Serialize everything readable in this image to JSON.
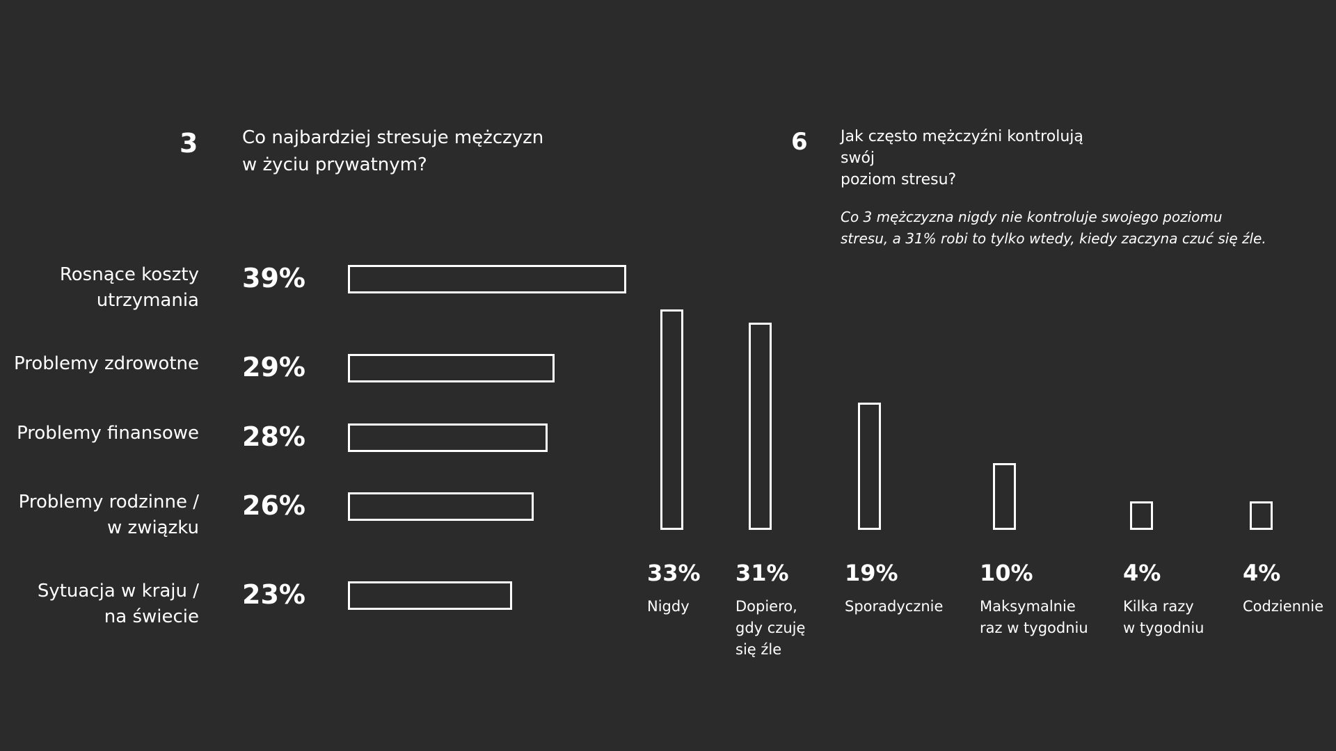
{
  "colors": {
    "background": "#2b2b2b",
    "foreground": "#ffffff"
  },
  "section3": {
    "number": "3",
    "title": "Co najbardziej stresuje mężczyzn\nw życiu prywatnym?"
  },
  "section6": {
    "number": "6",
    "title": "Jak często mężczyźni kontrolują swój\npoziom stresu?",
    "note": "Co 3 mężczyzna nigdy nie kontroluje swojego poziomu\nstresu, a 31% robi to tylko wtedy, kiedy zaczyna czuć się źle."
  },
  "chart_data": [
    {
      "type": "bar",
      "orientation": "horizontal",
      "title": "Co najbardziej stresuje mężczyzn w życiu prywatnym?",
      "categories": [
        "Rosnące koszty\nutrzymania",
        "Problemy zdrowotne",
        "Problemy finansowe",
        "Problemy rodzinne /\nw związku",
        "Sytuacja w kraju /\nna świecie"
      ],
      "values": [
        39,
        29,
        28,
        26,
        23
      ],
      "value_labels": [
        "39%",
        "29%",
        "28%",
        "26%",
        "23%"
      ],
      "xlim": [
        0,
        39
      ]
    },
    {
      "type": "bar",
      "orientation": "vertical",
      "title": "Jak często mężczyźni kontrolują swój poziom stresu?",
      "categories": [
        "Nigdy",
        "Dopiero,\ngdy czuję\nsię źle",
        "Sporadycznie",
        "Maksymalnie\nraz w tygodniu",
        "Kilka razy\nw tygodniu",
        "Codziennie"
      ],
      "values": [
        33,
        31,
        19,
        10,
        4,
        4
      ],
      "value_labels": [
        "33%",
        "31%",
        "19%",
        "10%",
        "4%",
        "4%"
      ],
      "ylim": [
        0,
        33
      ]
    }
  ]
}
